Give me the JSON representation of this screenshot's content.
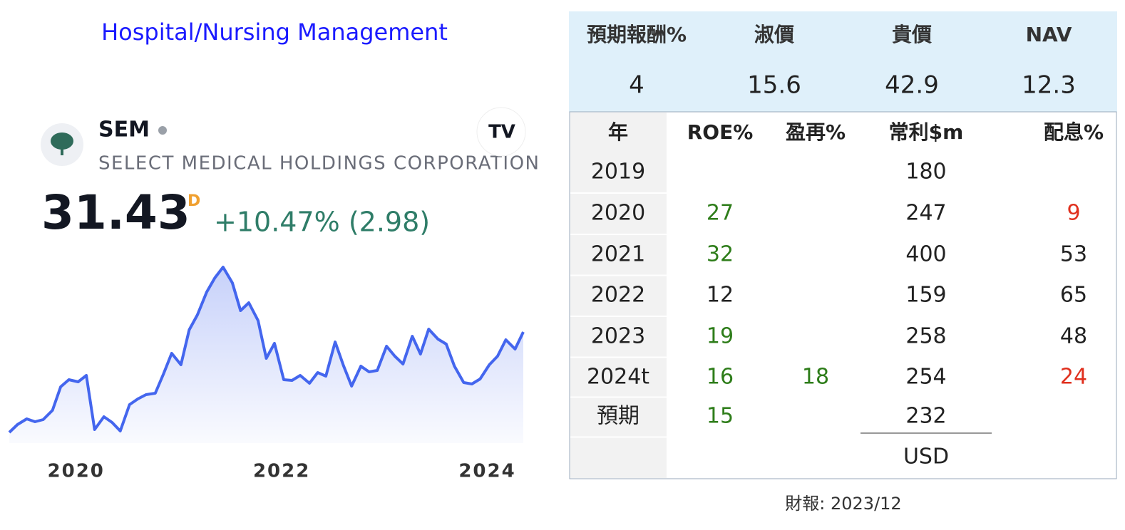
{
  "header": {
    "title": "Hospital/Nursing Management",
    "ticker": "SEM",
    "company": "SELECT MEDICAL HOLDINGS CORPORATION",
    "price": "31.43",
    "price_flag": "D",
    "change": "+10.47% (2.98)"
  },
  "chart_data": {
    "type": "line",
    "color": "#4466ee",
    "x": [
      2019.35,
      2019.43,
      2019.52,
      2019.6,
      2019.68,
      2019.77,
      2019.85,
      2019.93,
      2020.02,
      2020.1,
      2020.18,
      2020.27,
      2020.35,
      2020.43,
      2020.52,
      2020.6,
      2020.68,
      2020.77,
      2020.85,
      2020.93,
      2021.02,
      2021.1,
      2021.18,
      2021.27,
      2021.35,
      2021.43,
      2021.52,
      2021.6,
      2021.68,
      2021.77,
      2021.85,
      2021.93,
      2022.02,
      2022.1,
      2022.18,
      2022.27,
      2022.35,
      2022.43,
      2022.52,
      2022.6,
      2022.68,
      2022.77,
      2022.85,
      2022.93,
      2023.02,
      2023.1,
      2023.18,
      2023.27,
      2023.35,
      2023.43,
      2023.52,
      2023.6,
      2023.68,
      2023.77,
      2023.85,
      2023.93,
      2024.02,
      2024.1,
      2024.18,
      2024.27,
      2024.35
    ],
    "values": [
      16.8,
      17.9,
      18.7,
      18.3,
      18.6,
      19.9,
      23.2,
      24.2,
      23.9,
      24.8,
      17.2,
      19,
      18.2,
      17,
      20.7,
      21.5,
      22.1,
      22.3,
      25,
      27.9,
      26.3,
      31.2,
      33.3,
      36.5,
      38.5,
      40,
      37.8,
      33.9,
      35,
      32.5,
      27.2,
      29.3,
      24.2,
      24.1,
      24.8,
      23.7,
      25.2,
      24.7,
      29.5,
      26.2,
      23.3,
      26.1,
      25.3,
      25.5,
      28.9,
      27.5,
      26.4,
      30.3,
      27.8,
      31.3,
      29.9,
      29.2,
      26.1,
      23.8,
      23.6,
      24.3,
      26.3,
      27.5,
      29.8,
      28.5,
      30.9
    ],
    "xlim": [
      2019.35,
      2024.35
    ],
    "xticks": [
      2020,
      2022,
      2024
    ]
  },
  "summary": {
    "headers": [
      "預期報酬%",
      "淑價",
      "貴價",
      "NAV"
    ],
    "values": [
      "4",
      "15.6",
      "42.9",
      "12.3"
    ]
  },
  "table": {
    "headers": [
      "年",
      "ROE%",
      "盈再%",
      "常利$m",
      "配息%"
    ],
    "rows": [
      [
        {
          "text": "2019"
        },
        null,
        null,
        {
          "text": "180"
        },
        null
      ],
      [
        {
          "text": "2020"
        },
        {
          "text": "27",
          "color": "#2e7d1a"
        },
        null,
        {
          "text": "247"
        },
        {
          "text": "9",
          "color": "#e0301e"
        }
      ],
      [
        {
          "text": "2021"
        },
        {
          "text": "32",
          "color": "#2e7d1a"
        },
        null,
        {
          "text": "400"
        },
        {
          "text": "53"
        }
      ],
      [
        {
          "text": "2022"
        },
        {
          "text": "12"
        },
        null,
        {
          "text": "159"
        },
        {
          "text": "65"
        }
      ],
      [
        {
          "text": "2023"
        },
        {
          "text": "19",
          "color": "#2e7d1a"
        },
        null,
        {
          "text": "258"
        },
        {
          "text": "48"
        }
      ],
      [
        {
          "text": "2024t"
        },
        {
          "text": "16",
          "color": "#2e7d1a"
        },
        {
          "text": "18",
          "color": "#2e7d1a"
        },
        {
          "text": "254"
        },
        {
          "text": "24",
          "color": "#e0301e"
        }
      ],
      [
        {
          "text": "預期"
        },
        {
          "text": "15",
          "color": "#2e7d1a"
        },
        null,
        {
          "text": "232"
        },
        null
      ],
      [
        null,
        null,
        null,
        {
          "text": "USD"
        },
        null
      ]
    ]
  },
  "footnote": "財報: 2023/12"
}
